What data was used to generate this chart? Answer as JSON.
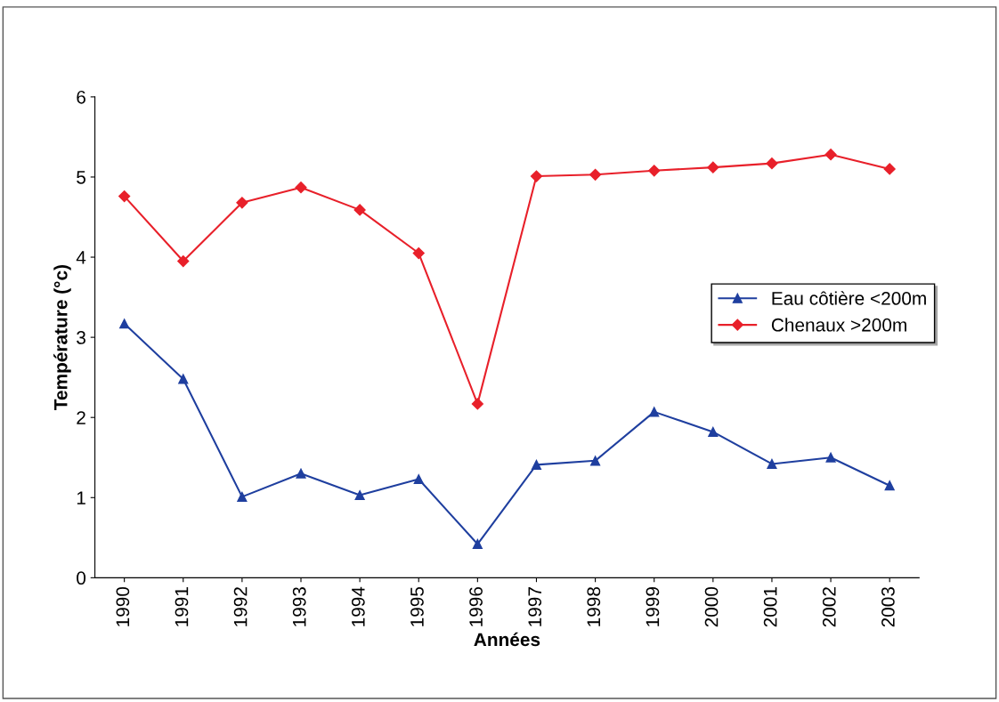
{
  "chart_data": {
    "type": "line",
    "xlabel": "Années",
    "ylabel": "Température (°c)",
    "categories": [
      "1990",
      "1991",
      "1992",
      "1993",
      "1994",
      "1995",
      "1996",
      "1997",
      "1998",
      "1999",
      "2000",
      "2001",
      "2002",
      "2003"
    ],
    "series": [
      {
        "name": "Eau côtière <200m",
        "color": "#1f3f9f",
        "marker": "triangle",
        "values": [
          3.17,
          2.48,
          1.01,
          1.3,
          1.03,
          1.23,
          0.42,
          1.41,
          1.46,
          2.07,
          1.82,
          1.42,
          1.5,
          1.15
        ]
      },
      {
        "name": "Chenaux >200m",
        "color": "#e8202a",
        "marker": "diamond",
        "values": [
          4.76,
          3.95,
          4.68,
          4.87,
          4.59,
          4.05,
          2.17,
          5.01,
          5.03,
          5.08,
          5.12,
          5.17,
          5.28,
          5.1
        ]
      }
    ],
    "ylim": [
      0,
      6
    ],
    "yticks": [
      0,
      1,
      2,
      3,
      4,
      5,
      6
    ],
    "grid": false,
    "legend": "right",
    "line_style": "solid"
  }
}
